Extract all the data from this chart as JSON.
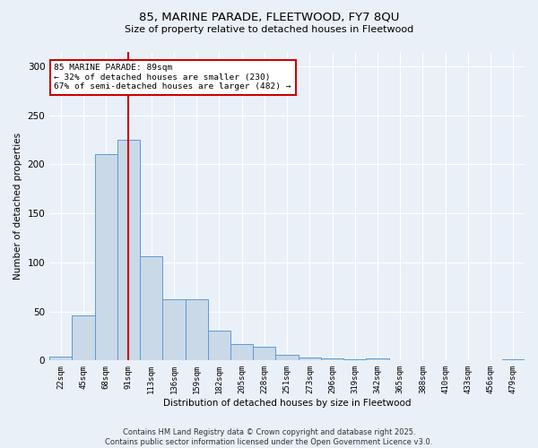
{
  "title1": "85, MARINE PARADE, FLEETWOOD, FY7 8QU",
  "title2": "Size of property relative to detached houses in Fleetwood",
  "xlabel": "Distribution of detached houses by size in Fleetwood",
  "ylabel": "Number of detached properties",
  "categories": [
    "22sqm",
    "45sqm",
    "68sqm",
    "91sqm",
    "113sqm",
    "136sqm",
    "159sqm",
    "182sqm",
    "205sqm",
    "228sqm",
    "251sqm",
    "273sqm",
    "296sqm",
    "319sqm",
    "342sqm",
    "365sqm",
    "388sqm",
    "410sqm",
    "433sqm",
    "456sqm",
    "479sqm"
  ],
  "values": [
    4,
    46,
    210,
    225,
    106,
    62,
    62,
    30,
    17,
    14,
    6,
    3,
    2,
    1,
    2,
    0,
    0,
    0,
    0,
    0,
    1
  ],
  "bar_color": "#c9d9e8",
  "bar_edge_color": "#5b9bd5",
  "ylim": [
    0,
    315
  ],
  "yticks": [
    0,
    50,
    100,
    150,
    200,
    250,
    300
  ],
  "property_label": "85 MARINE PARADE: 89sqm",
  "annotation_line1": "← 32% of detached houses are smaller (230)",
  "annotation_line2": "67% of semi-detached houses are larger (482) →",
  "vline_x_index": 3.0,
  "vline_color": "#cc0000",
  "annotation_box_color": "#cc0000",
  "footer1": "Contains HM Land Registry data © Crown copyright and database right 2025.",
  "footer2": "Contains public sector information licensed under the Open Government Licence v3.0.",
  "bg_color": "#eaf0f8"
}
